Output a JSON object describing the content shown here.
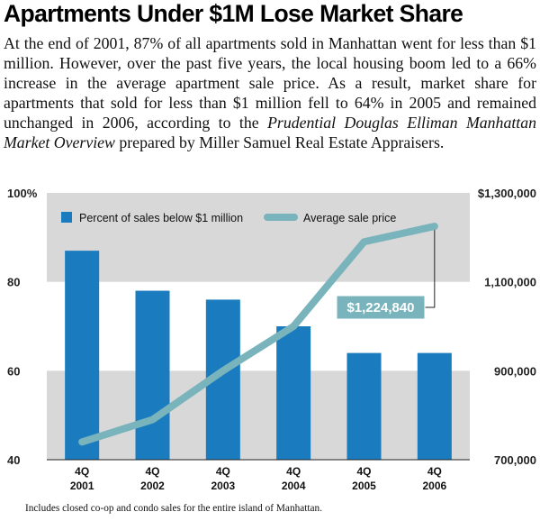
{
  "headline": "Apartments Under $1M Lose Market Share",
  "paragraph": {
    "before": "At the end of 2001, 87% of all apartments sold in Manhattan went for less than $1 million. However, over the past five years, the local housing boom led to a 66% increase in the average apartment sale price. As a result, market share for apartments that sold for less than $1 million fell to 64% in 2005 and remained unchanged in 2006, according to the ",
    "source": "Prudential Douglas Elliman Manhattan Market Overview",
    "after": " prepared by Miller Samuel Real Estate Appraisers."
  },
  "footnote": "Includes closed co-op and condo sales for the entire island of Manhattan.",
  "colors": {
    "bar": "#1a7bbf",
    "line": "#79b3bb",
    "band": "#d8d8d8",
    "callout_fill": "#79b3bb"
  },
  "chart_data": {
    "type": "bar",
    "categories": [
      [
        "4Q",
        "2001"
      ],
      [
        "4Q",
        "2002"
      ],
      [
        "4Q",
        "2003"
      ],
      [
        "4Q",
        "2004"
      ],
      [
        "4Q",
        "2005"
      ],
      [
        "4Q",
        "2006"
      ]
    ],
    "series": [
      {
        "name": "Percent of sales below $1 million",
        "type": "bar",
        "axis": "left",
        "values": [
          87,
          78,
          76,
          70,
          64,
          64
        ]
      },
      {
        "name": "Average sale price",
        "type": "line",
        "axis": "right",
        "values": [
          740000,
          790000,
          900000,
          1000000,
          1190000,
          1224840
        ]
      }
    ],
    "left_axis": {
      "ylim": [
        40,
        100
      ],
      "ticks": [
        "100%",
        "80",
        "60",
        "40"
      ],
      "values": [
        100,
        80,
        60,
        40
      ]
    },
    "right_axis": {
      "ylim": [
        700000,
        1300000
      ],
      "ticks": [
        "$1,300,000",
        "1,100,000",
        "900,000",
        "700,000"
      ],
      "values": [
        1300000,
        1100000,
        900000,
        700000
      ]
    },
    "annotations": [
      {
        "series": 1,
        "point": 5,
        "text": "$1,224,840"
      }
    ],
    "legend": "top"
  }
}
